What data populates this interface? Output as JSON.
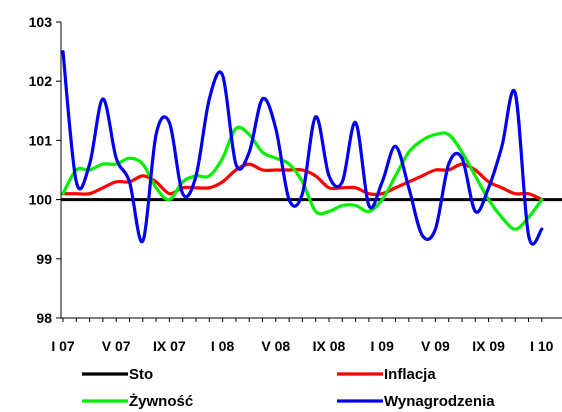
{
  "chart_data": {
    "type": "line",
    "title": "",
    "xlabel": "",
    "ylabel": "",
    "ylim": [
      98,
      103
    ],
    "yticks": [
      "98",
      "99",
      "100",
      "101",
      "102",
      "103"
    ],
    "x": [
      "I 07",
      "II 07",
      "III 07",
      "IV 07",
      "V 07",
      "VI 07",
      "VII 07",
      "VIII 07",
      "IX 07",
      "X 07",
      "XI 07",
      "XII 07",
      "I 08",
      "II 08",
      "III 08",
      "IV 08",
      "V 08",
      "VI 08",
      "VII 08",
      "VIII 08",
      "IX 08",
      "X 08",
      "XI 08",
      "XII 08",
      "I 09",
      "II 09",
      "III 09",
      "IV 09",
      "V 09",
      "VI 09",
      "VII 09",
      "VIII 09",
      "IX 09",
      "X 09",
      "XI 09",
      "XII 09",
      "I 10"
    ],
    "xtick_labels": [
      "I 07",
      "V 07",
      "IX 07",
      "I 08",
      "V 08",
      "IX 08",
      "I 09",
      "V 09",
      "IX 09",
      "I 10"
    ],
    "grid": false,
    "legend_position": "bottom",
    "series": [
      {
        "name": "Sto",
        "color": "#000000",
        "values": [
          100,
          100,
          100,
          100,
          100,
          100,
          100,
          100,
          100,
          100,
          100,
          100,
          100,
          100,
          100,
          100,
          100,
          100,
          100,
          100,
          100,
          100,
          100,
          100,
          100,
          100,
          100,
          100,
          100,
          100,
          100,
          100,
          100,
          100,
          100,
          100,
          100
        ]
      },
      {
        "name": "Inflacja",
        "color": "#ff0000",
        "values": [
          100.1,
          100.1,
          100.1,
          100.2,
          100.3,
          100.3,
          100.4,
          100.3,
          100.1,
          100.2,
          100.2,
          100.2,
          100.3,
          100.5,
          100.6,
          100.5,
          100.5,
          100.5,
          100.5,
          100.4,
          100.2,
          100.2,
          100.2,
          100.1,
          100.1,
          100.2,
          100.3,
          100.4,
          100.5,
          100.5,
          100.6,
          100.5,
          100.3,
          100.2,
          100.1,
          100.1,
          100.0
        ]
      },
      {
        "name": "Żywność",
        "color": "#00ee00",
        "values": [
          100.1,
          100.5,
          100.5,
          100.6,
          100.6,
          100.7,
          100.6,
          100.2,
          100.0,
          100.3,
          100.4,
          100.4,
          100.7,
          101.2,
          101.1,
          100.8,
          100.7,
          100.6,
          100.3,
          99.8,
          99.8,
          99.9,
          99.9,
          99.8,
          100.0,
          100.4,
          100.8,
          101.0,
          101.1,
          101.1,
          100.8,
          100.4,
          100.0,
          99.7,
          99.5,
          99.7,
          100.0
        ]
      },
      {
        "name": "Wynagrodzenia",
        "color": "#0000ee",
        "values": [
          102.5,
          100.3,
          100.6,
          101.7,
          100.7,
          100.3,
          99.3,
          101.1,
          101.3,
          100.1,
          100.4,
          101.7,
          102.1,
          100.6,
          100.8,
          101.7,
          101.2,
          100.0,
          100.1,
          101.4,
          100.4,
          100.3,
          101.3,
          99.9,
          100.3,
          100.9,
          100.2,
          99.4,
          99.5,
          100.6,
          100.7,
          99.8,
          100.2,
          100.9,
          101.8,
          99.4,
          99.5
        ]
      }
    ]
  }
}
